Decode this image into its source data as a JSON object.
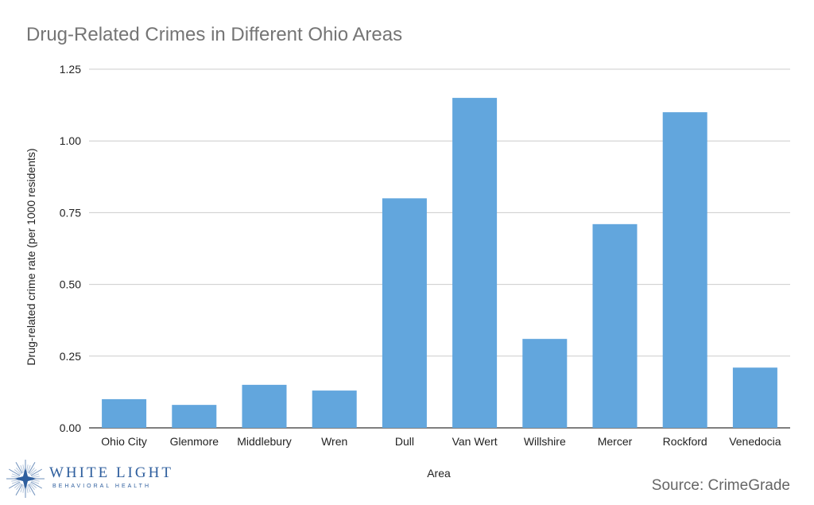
{
  "chart_data": {
    "type": "bar",
    "title": "Drug-Related Crimes in Different Ohio Areas",
    "xlabel": "Area",
    "ylabel": "Drug-related crime rate (per 1000 residents)",
    "categories": [
      "Ohio City",
      "Glenmore",
      "Middlebury",
      "Wren",
      "Dull",
      "Van Wert",
      "Willshire",
      "Mercer",
      "Rockford",
      "Venedocia"
    ],
    "values": [
      0.1,
      0.08,
      0.15,
      0.13,
      0.8,
      1.15,
      0.31,
      0.71,
      1.1,
      0.21
    ],
    "ylim": [
      0,
      1.25
    ],
    "yticks": [
      "0.00",
      "0.25",
      "0.50",
      "0.75",
      "1.00",
      "1.25"
    ],
    "grid": true,
    "bar_color": "#62a6dd",
    "grid_color": "#cccccc"
  },
  "source": "Source: CrimeGrade",
  "logo": {
    "name": "WHITE LIGHT",
    "subtitle": "BEHAVIORAL HEALTH",
    "icon": "star-burst-icon",
    "color": "#2f5f9e"
  }
}
